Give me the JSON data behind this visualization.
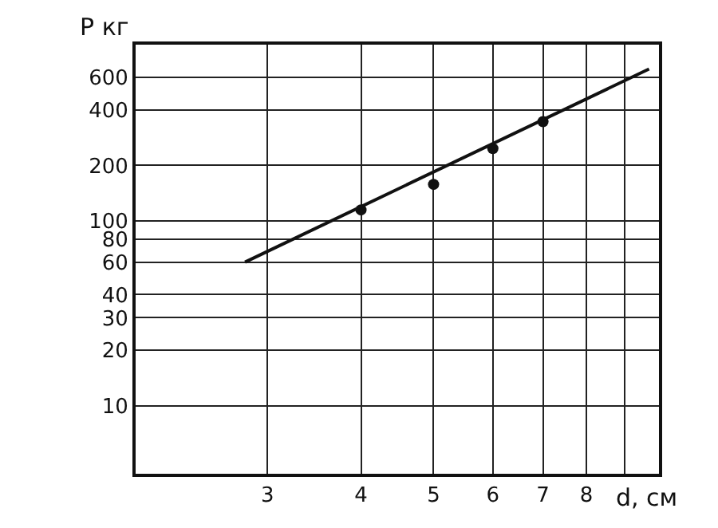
{
  "chart_data": {
    "type": "scatter",
    "xlabel": "d, см",
    "ylabel": "P кг",
    "log": "xy",
    "grid": true,
    "marker": "circle",
    "xlim": [
      2,
      10
    ],
    "ylim": [
      4.3,
      900
    ],
    "xticks": [
      3,
      4,
      5,
      6,
      7,
      8,
      {
        "value": 9,
        "label": null
      }
    ],
    "yticks": [
      10,
      20,
      30,
      40,
      60,
      80,
      100,
      200,
      400,
      600
    ],
    "series": [
      {
        "color": "#111111",
        "x": [
          4,
          5,
          6,
          7
        ],
        "values": [
          115,
          158,
          247,
          345
        ]
      },
      {
        "type": "line",
        "color": "#111111",
        "marker": "none",
        "line_style": "solid",
        "x": [
          2.8,
          9.7
        ],
        "values": [
          60,
          665
        ]
      }
    ]
  }
}
